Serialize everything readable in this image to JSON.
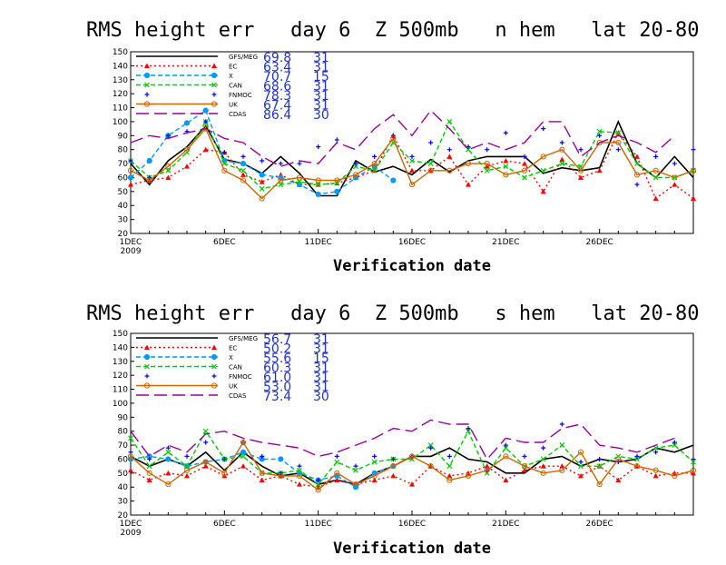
{
  "chart_data": [
    {
      "type": "line",
      "title": "RMS height err   day 6  Z 500mb   n hem   lat 20-80",
      "xlabel": "Verification date",
      "ylabel": "",
      "ylim": [
        20,
        150
      ],
      "yticks": [
        20,
        30,
        40,
        50,
        60,
        70,
        80,
        90,
        100,
        110,
        120,
        130,
        140,
        150
      ],
      "xlim": [
        1,
        31
      ],
      "xticks": [
        {
          "day": 1,
          "label": "1DEC",
          "label2": "2009"
        },
        {
          "day": 6,
          "label": "6DEC"
        },
        {
          "day": 11,
          "label": "11DEC"
        },
        {
          "day": 16,
          "label": "16DEC"
        },
        {
          "day": 21,
          "label": "21DEC"
        },
        {
          "day": 26,
          "label": "26DEC"
        }
      ],
      "grid": false,
      "legend_position": "top-left",
      "series": [
        {
          "name": "GFS/MEG",
          "stat": "69.8",
          "count": "31",
          "color": "#000000",
          "style": "solid",
          "marker": "none",
          "x": [
            1,
            2,
            3,
            4,
            5,
            6,
            7,
            8,
            9,
            10,
            11,
            12,
            13,
            14,
            15,
            16,
            17,
            18,
            19,
            20,
            21,
            22,
            23,
            24,
            25,
            26,
            27,
            28,
            29,
            30,
            31
          ],
          "values": [
            70,
            55,
            72,
            82,
            97,
            73,
            70,
            63,
            75,
            63,
            47,
            47,
            72,
            64,
            68,
            62,
            73,
            64,
            72,
            75,
            75,
            75,
            63,
            67,
            65,
            67,
            100,
            70,
            60,
            75,
            60
          ]
        },
        {
          "name": "EC",
          "stat": "63.4",
          "count": "31",
          "color": "#ff0000",
          "style": "dotted",
          "marker": "triangle",
          "x": [
            1,
            2,
            3,
            4,
            5,
            6,
            7,
            8,
            9,
            10,
            11,
            12,
            13,
            14,
            15,
            16,
            17,
            18,
            19,
            20,
            21,
            22,
            23,
            24,
            25,
            26,
            27,
            28,
            29,
            30,
            31
          ],
          "values": [
            55,
            58,
            60,
            68,
            80,
            78,
            62,
            57,
            62,
            55,
            55,
            56,
            60,
            65,
            90,
            65,
            65,
            75,
            55,
            68,
            72,
            70,
            50,
            73,
            60,
            65,
            92,
            75,
            45,
            55,
            45
          ]
        },
        {
          "name": "X",
          "stat": "70.7",
          "count": "15",
          "color": "#0099ff",
          "style": "dashed",
          "marker": "circle",
          "x": [
            1,
            2,
            3,
            4,
            5,
            6,
            7,
            8,
            9,
            10,
            11,
            12,
            13,
            14,
            15
          ],
          "values": [
            60,
            72,
            90,
            99,
            108,
            72,
            70,
            62,
            60,
            55,
            48,
            50,
            60,
            68,
            58
          ]
        },
        {
          "name": "CAN",
          "stat": "68.6",
          "count": "31",
          "color": "#00cc00",
          "style": "dashed",
          "marker": "x",
          "x": [
            1,
            2,
            3,
            4,
            5,
            6,
            7,
            8,
            9,
            10,
            11,
            12,
            13,
            14,
            15,
            16,
            17,
            18,
            19,
            20,
            21,
            22,
            23,
            24,
            25,
            26,
            27,
            28,
            29,
            30,
            31
          ],
          "values": [
            72,
            60,
            65,
            78,
            100,
            70,
            65,
            52,
            55,
            57,
            55,
            56,
            68,
            65,
            85,
            72,
            70,
            100,
            80,
            65,
            68,
            60,
            65,
            70,
            68,
            93,
            92,
            70,
            60,
            60,
            65
          ]
        },
        {
          "name": "FNMOC",
          "stat": "78.3",
          "count": "31",
          "color": "#0000ff",
          "style": "none",
          "marker": "plus",
          "x": [
            1,
            2,
            3,
            4,
            5,
            6,
            7,
            8,
            9,
            10,
            11,
            12,
            13,
            14,
            15,
            16,
            17,
            18,
            19,
            20,
            21,
            22,
            23,
            24,
            25,
            26,
            27,
            28,
            29,
            30,
            31
          ],
          "values": [
            72,
            60,
            90,
            93,
            100,
            78,
            75,
            72,
            70,
            70,
            82,
            87,
            70,
            75,
            90,
            75,
            85,
            80,
            82,
            80,
            92,
            75,
            95,
            85,
            80,
            90,
            80,
            55,
            75,
            70,
            80
          ]
        },
        {
          "name": "UK",
          "stat": "67.4",
          "count": "31",
          "color": "#cc6600",
          "style": "solid",
          "marker": "circle",
          "x": [
            1,
            2,
            3,
            4,
            5,
            6,
            7,
            8,
            9,
            10,
            11,
            12,
            13,
            14,
            15,
            16,
            17,
            18,
            19,
            20,
            21,
            22,
            23,
            24,
            25,
            26,
            27,
            28,
            29,
            30,
            31
          ],
          "values": [
            65,
            58,
            68,
            80,
            95,
            65,
            58,
            45,
            58,
            60,
            58,
            58,
            62,
            70,
            88,
            55,
            65,
            65,
            70,
            70,
            62,
            65,
            75,
            80,
            65,
            85,
            85,
            62,
            65,
            60,
            65
          ]
        },
        {
          "name": "CDAS",
          "stat": "86.4",
          "count": "30",
          "color": "#990099",
          "style": "longdash",
          "marker": "none",
          "x": [
            1,
            2,
            3,
            4,
            5,
            6,
            7,
            8,
            9,
            10,
            11,
            12,
            13,
            14,
            15,
            16,
            17,
            18,
            19,
            20,
            21,
            22,
            23,
            24,
            25,
            26,
            27,
            28,
            29,
            30
          ],
          "values": [
            85,
            90,
            88,
            92,
            95,
            88,
            85,
            75,
            68,
            72,
            70,
            85,
            80,
            95,
            105,
            90,
            108,
            95,
            80,
            85,
            80,
            85,
            100,
            100,
            75,
            85,
            90,
            85,
            78,
            90
          ]
        }
      ]
    },
    {
      "type": "line",
      "title": "RMS height err   day 6  Z 500mb   s hem   lat 20-80",
      "xlabel": "Verification date",
      "ylabel": "",
      "ylim": [
        20,
        150
      ],
      "yticks": [
        20,
        30,
        40,
        50,
        60,
        70,
        80,
        90,
        100,
        110,
        120,
        130,
        140,
        150
      ],
      "xlim": [
        1,
        31
      ],
      "xticks": [
        {
          "day": 1,
          "label": "1DEC",
          "label2": "2009"
        },
        {
          "day": 6,
          "label": "6DEC"
        },
        {
          "day": 11,
          "label": "11DEC"
        },
        {
          "day": 16,
          "label": "16DEC"
        },
        {
          "day": 21,
          "label": "21DEC"
        },
        {
          "day": 26,
          "label": "26DEC"
        }
      ],
      "grid": false,
      "legend_position": "top-left",
      "series": [
        {
          "name": "GFS/MEG",
          "stat": "56.7",
          "count": "31",
          "color": "#000000",
          "style": "solid",
          "marker": "none",
          "x": [
            1,
            2,
            3,
            4,
            5,
            6,
            7,
            8,
            9,
            10,
            11,
            12,
            13,
            14,
            15,
            16,
            17,
            18,
            19,
            20,
            21,
            22,
            23,
            24,
            25,
            26,
            27,
            28,
            29,
            30,
            31
          ],
          "values": [
            62,
            55,
            60,
            55,
            65,
            52,
            65,
            55,
            48,
            50,
            42,
            45,
            42,
            50,
            55,
            62,
            62,
            68,
            60,
            58,
            50,
            50,
            60,
            62,
            55,
            60,
            58,
            60,
            68,
            65,
            70
          ]
        },
        {
          "name": "EC",
          "stat": "50.2",
          "count": "31",
          "color": "#ff0000",
          "style": "dotted",
          "marker": "triangle",
          "x": [
            1,
            2,
            3,
            4,
            5,
            6,
            7,
            8,
            9,
            10,
            11,
            12,
            13,
            14,
            15,
            16,
            17,
            18,
            19,
            20,
            21,
            22,
            23,
            24,
            25,
            26,
            27,
            28,
            29,
            30,
            31
          ],
          "values": [
            52,
            45,
            50,
            48,
            55,
            48,
            55,
            45,
            48,
            42,
            40,
            45,
            42,
            45,
            48,
            42,
            55,
            48,
            50,
            55,
            45,
            52,
            55,
            55,
            48,
            55,
            45,
            55,
            48,
            50,
            50
          ]
        },
        {
          "name": "X",
          "stat": "55.6",
          "count": "15",
          "color": "#0099ff",
          "style": "dashed",
          "marker": "circle",
          "x": [
            1,
            2,
            3,
            4,
            5,
            6,
            7,
            8,
            9,
            10,
            11,
            12,
            13,
            14,
            15
          ],
          "values": [
            60,
            62,
            60,
            55,
            58,
            60,
            65,
            60,
            60,
            50,
            45,
            48,
            40,
            50,
            55
          ]
        },
        {
          "name": "CAN",
          "stat": "60.3",
          "count": "31",
          "color": "#00cc00",
          "style": "dashed",
          "marker": "x",
          "x": [
            1,
            2,
            3,
            4,
            5,
            6,
            7,
            8,
            9,
            10,
            11,
            12,
            13,
            14,
            15,
            16,
            17,
            18,
            19,
            20,
            21,
            22,
            23,
            24,
            25,
            26,
            27,
            28,
            29,
            30,
            31
          ],
          "values": [
            75,
            55,
            65,
            55,
            80,
            60,
            62,
            50,
            50,
            52,
            42,
            58,
            52,
            58,
            60,
            60,
            70,
            55,
            80,
            50,
            68,
            55,
            60,
            70,
            55,
            55,
            62,
            60,
            68,
            70,
            58
          ]
        },
        {
          "name": "FNMOC",
          "stat": "61.0",
          "count": "31",
          "color": "#0000ff",
          "style": "none",
          "marker": "plus",
          "x": [
            1,
            2,
            3,
            4,
            5,
            6,
            7,
            8,
            9,
            10,
            11,
            12,
            13,
            14,
            15,
            16,
            17,
            18,
            19,
            20,
            21,
            22,
            23,
            24,
            25,
            26,
            27,
            28,
            29,
            30,
            31
          ],
          "values": [
            65,
            60,
            68,
            62,
            72,
            60,
            72,
            62,
            50,
            55,
            45,
            62,
            55,
            62,
            60,
            62,
            68,
            62,
            82,
            52,
            70,
            62,
            68,
            85,
            58,
            60,
            58,
            62,
            65,
            72,
            60
          ]
        },
        {
          "name": "UK",
          "stat": "53.0",
          "count": "31",
          "color": "#cc6600",
          "style": "solid",
          "marker": "circle",
          "x": [
            1,
            2,
            3,
            4,
            5,
            6,
            7,
            8,
            9,
            10,
            11,
            12,
            13,
            14,
            15,
            16,
            17,
            18,
            19,
            20,
            21,
            22,
            23,
            24,
            25,
            26,
            27,
            28,
            29,
            30,
            31
          ],
          "values": [
            62,
            50,
            42,
            52,
            58,
            50,
            72,
            50,
            48,
            48,
            38,
            50,
            42,
            48,
            55,
            62,
            55,
            45,
            48,
            52,
            62,
            55,
            50,
            52,
            65,
            42,
            60,
            55,
            52,
            48,
            52
          ]
        },
        {
          "name": "CDAS",
          "stat": "73.4",
          "count": "30",
          "color": "#990099",
          "style": "longdash",
          "marker": "none",
          "x": [
            1,
            2,
            3,
            4,
            5,
            6,
            7,
            8,
            9,
            10,
            11,
            12,
            13,
            14,
            15,
            16,
            17,
            18,
            19,
            20,
            21,
            22,
            23,
            24,
            25,
            26,
            27,
            28,
            29,
            30
          ],
          "values": [
            80,
            62,
            70,
            65,
            78,
            80,
            75,
            72,
            70,
            68,
            62,
            65,
            70,
            75,
            82,
            80,
            88,
            85,
            85,
            60,
            75,
            72,
            72,
            82,
            85,
            70,
            68,
            65,
            70,
            75
          ]
        }
      ]
    }
  ]
}
